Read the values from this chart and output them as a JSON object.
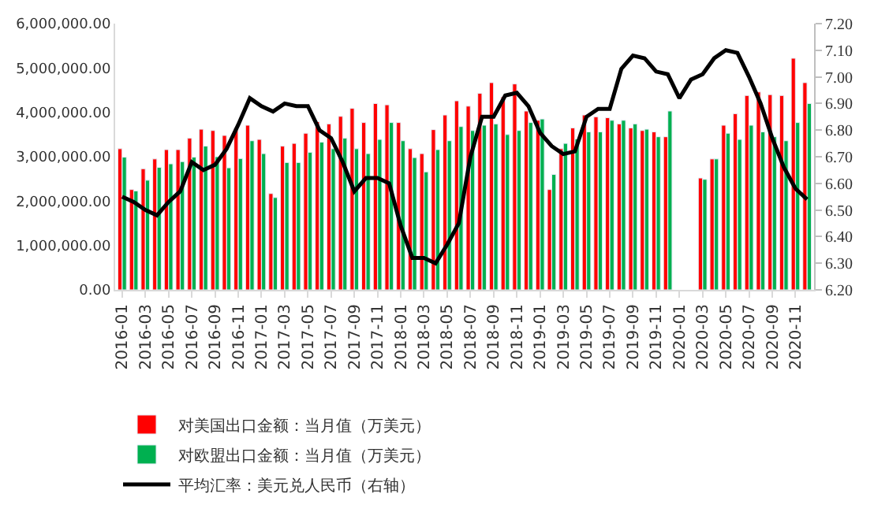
{
  "chart_data": {
    "type": "bar",
    "categories": [
      "2016-01",
      null,
      "2016-03",
      null,
      "2016-05",
      null,
      "2016-07",
      null,
      "2016-09",
      null,
      "2016-11",
      null,
      "2017-01",
      null,
      "2017-03",
      null,
      "2017-05",
      null,
      "2017-07",
      null,
      "2017-09",
      null,
      "2017-11",
      null,
      "2018-01",
      null,
      "2018-03",
      null,
      "2018-05",
      null,
      "2018-07",
      null,
      "2018-09",
      null,
      "2018-11",
      null,
      "2019-01",
      null,
      "2019-03",
      null,
      "2019-05",
      null,
      "2019-07",
      null,
      "2019-09",
      null,
      "2019-11",
      null,
      "2020-01",
      null,
      "2020-03",
      null,
      "2020-05",
      null,
      "2020-07",
      null,
      "2020-09",
      null,
      "2020-11",
      null
    ],
    "series": [
      {
        "name": "对美国出口金额：当月值（万美元）",
        "color": "#ff0000",
        "values": [
          3180000,
          2260000,
          2730000,
          2950000,
          3160000,
          3160000,
          3420000,
          3620000,
          3590000,
          3480000,
          3650000,
          3710000,
          3390000,
          2170000,
          3240000,
          3300000,
          3530000,
          3790000,
          3740000,
          3910000,
          4090000,
          3770000,
          4200000,
          4170000,
          3770000,
          3180000,
          3070000,
          3610000,
          3940000,
          4260000,
          4140000,
          4430000,
          4670000,
          4350000,
          4640000,
          4030000,
          3820000,
          2260000,
          3180000,
          3650000,
          3940000,
          3900000,
          3880000,
          3740000,
          3650000,
          3590000,
          3560000,
          3450000,
          null,
          null,
          2520000,
          2950000,
          3710000,
          3970000,
          4380000,
          4460000,
          4400000,
          4380000,
          5220000,
          4670000
        ]
      },
      {
        "name": "对欧盟出口金额：当月值（万美元）",
        "color": "#00b050",
        "values": [
          2990000,
          2230000,
          2470000,
          2760000,
          2840000,
          2890000,
          2990000,
          3240000,
          3000000,
          2750000,
          2960000,
          3360000,
          3070000,
          2080000,
          2870000,
          2870000,
          3100000,
          3330000,
          3180000,
          3420000,
          3180000,
          3070000,
          3390000,
          3770000,
          3360000,
          2980000,
          2660000,
          3160000,
          3360000,
          3680000,
          3590000,
          3710000,
          3740000,
          3500000,
          3590000,
          3770000,
          3850000,
          2600000,
          3300000,
          3400000,
          3560000,
          3560000,
          3820000,
          3820000,
          3740000,
          3620000,
          3450000,
          4030000,
          null,
          null,
          2490000,
          2950000,
          3530000,
          3390000,
          3710000,
          3560000,
          3450000,
          3360000,
          3770000,
          4200000
        ]
      },
      {
        "name": "平均汇率：美元兑人民币（右轴）",
        "type": "line",
        "axis": "y2",
        "color": "#000000",
        "values": [
          6.55,
          6.53,
          6.5,
          6.48,
          6.53,
          6.57,
          6.68,
          6.65,
          6.67,
          6.73,
          6.82,
          6.92,
          6.89,
          6.87,
          6.9,
          6.89,
          6.89,
          6.8,
          6.77,
          6.68,
          6.57,
          6.62,
          6.62,
          6.6,
          6.44,
          6.32,
          6.32,
          6.3,
          6.37,
          6.45,
          6.7,
          6.85,
          6.85,
          6.93,
          6.94,
          6.89,
          6.79,
          6.74,
          6.71,
          6.72,
          6.85,
          6.88,
          6.88,
          7.03,
          7.08,
          7.07,
          7.02,
          7.01,
          6.92,
          6.99,
          7.01,
          7.07,
          7.1,
          7.09,
          7.0,
          6.9,
          6.77,
          6.66,
          6.58,
          6.54
        ]
      }
    ],
    "ylim": [
      0,
      6000000
    ],
    "yticks": [
      {
        "value": 0,
        "label": "0.00"
      },
      {
        "value": 1000000,
        "label": "1,000,000.00"
      },
      {
        "value": 2000000,
        "label": "2,000,000.00"
      },
      {
        "value": 3000000,
        "label": "3,000,000.00"
      },
      {
        "value": 4000000,
        "label": "4,000,000.00"
      },
      {
        "value": 5000000,
        "label": "5,000,000.00"
      },
      {
        "value": 6000000,
        "label": "6,000,000.00"
      }
    ],
    "y2lim": [
      6.2,
      7.2
    ],
    "y2ticks": [
      {
        "value": 6.2,
        "label": "6.20"
      },
      {
        "value": 6.3,
        "label": "6.30"
      },
      {
        "value": 6.4,
        "label": "6.40"
      },
      {
        "value": 6.5,
        "label": "6.50"
      },
      {
        "value": 6.6,
        "label": "6.60"
      },
      {
        "value": 6.7,
        "label": "6.70"
      },
      {
        "value": 6.8,
        "label": "6.80"
      },
      {
        "value": 6.9,
        "label": "6.90"
      },
      {
        "value": 7.0,
        "label": "7.00"
      },
      {
        "value": 7.1,
        "label": "7.10"
      },
      {
        "value": 7.2,
        "label": "7.20"
      }
    ],
    "legend": "bottom",
    "marker": "none",
    "line_style": "solid"
  }
}
